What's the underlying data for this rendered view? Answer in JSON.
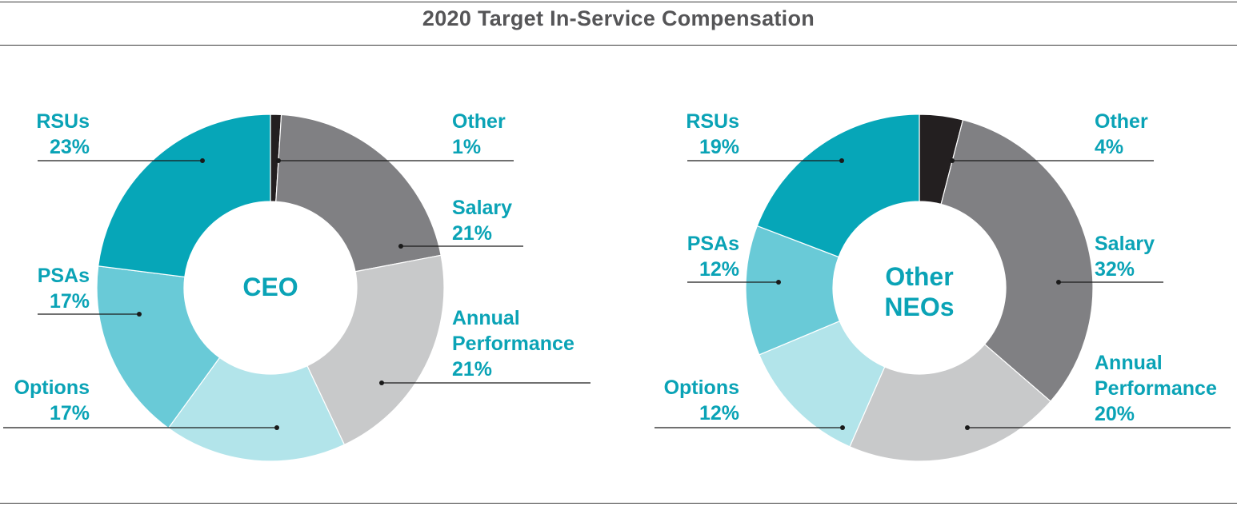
{
  "title": "2020 Target In-Service Compensation",
  "colors": {
    "RSUs": "#06a6b8",
    "Other": "#231f20",
    "Salary": "#808083",
    "Annual Performance": "#c8c9ca",
    "Options": "#b2e4ea",
    "PSAs": "#69cad7"
  },
  "chart_data": [
    {
      "type": "pie",
      "variant": "donut",
      "center_label": [
        "CEO"
      ],
      "slices": [
        {
          "name": "Other",
          "label_lines": [
            "Other"
          ],
          "value": 1,
          "value_label": "1%"
        },
        {
          "name": "Salary",
          "label_lines": [
            "Salary"
          ],
          "value": 21,
          "value_label": "21%"
        },
        {
          "name": "Annual Performance",
          "label_lines": [
            "Annual",
            "Performance"
          ],
          "value": 21,
          "value_label": "21%"
        },
        {
          "name": "Options",
          "label_lines": [
            "Options"
          ],
          "value": 17,
          "value_label": "17%"
        },
        {
          "name": "PSAs",
          "label_lines": [
            "PSAs"
          ],
          "value": 17,
          "value_label": "17%"
        },
        {
          "name": "RSUs",
          "label_lines": [
            "RSUs"
          ],
          "value": 23,
          "value_label": "23%"
        }
      ]
    },
    {
      "type": "pie",
      "variant": "donut",
      "center_label": [
        "Other",
        "NEOs"
      ],
      "slices": [
        {
          "name": "Other",
          "label_lines": [
            "Other"
          ],
          "value": 4,
          "value_label": "4%"
        },
        {
          "name": "Salary",
          "label_lines": [
            "Salary"
          ],
          "value": 32,
          "value_label": "32%"
        },
        {
          "name": "Annual Performance",
          "label_lines": [
            "Annual",
            "Performance"
          ],
          "value": 20,
          "value_label": "20%"
        },
        {
          "name": "Options",
          "label_lines": [
            "Options"
          ],
          "value": 12,
          "value_label": "12%"
        },
        {
          "name": "PSAs",
          "label_lines": [
            "PSAs"
          ],
          "value": 12,
          "value_label": "12%"
        },
        {
          "name": "RSUs",
          "label_lines": [
            "RSUs"
          ],
          "value": 19,
          "value_label": "19%"
        }
      ]
    }
  ]
}
